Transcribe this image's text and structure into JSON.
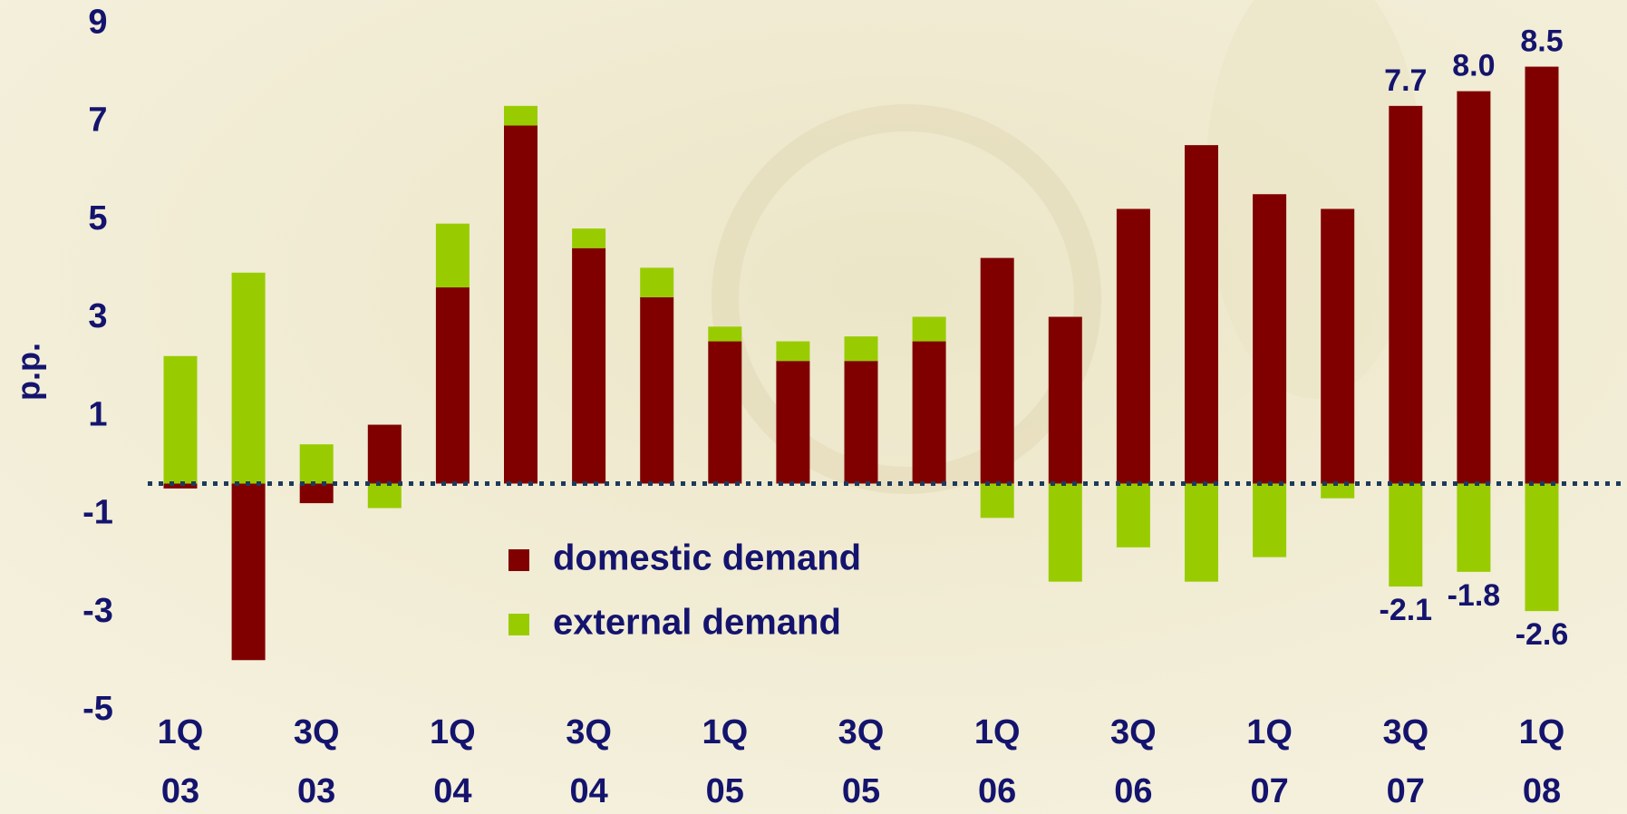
{
  "chart_data": {
    "type": "bar",
    "stacked": true,
    "y_label": "p.p.",
    "categories": [
      [
        "1Q",
        "03"
      ],
      null,
      [
        "3Q",
        "03"
      ],
      null,
      [
        "1Q",
        "04"
      ],
      null,
      [
        "3Q",
        "04"
      ],
      null,
      [
        "1Q",
        "05"
      ],
      null,
      [
        "3Q",
        "05"
      ],
      null,
      [
        "1Q",
        "06"
      ],
      null,
      [
        "3Q",
        "06"
      ],
      null,
      [
        "1Q",
        "07"
      ],
      null,
      [
        "3Q",
        "07"
      ],
      null,
      [
        "1Q",
        "08"
      ]
    ],
    "series": [
      {
        "name": "domestic demand",
        "color": "#800000",
        "values": [
          -0.1,
          -3.6,
          -0.4,
          1.2,
          4.0,
          7.3,
          4.8,
          3.8,
          2.9,
          2.5,
          2.5,
          2.9,
          4.6,
          3.4,
          5.6,
          6.9,
          5.9,
          5.6,
          7.7,
          8.0,
          8.5
        ],
        "value_labels": [
          null,
          null,
          null,
          null,
          null,
          null,
          null,
          null,
          null,
          null,
          null,
          null,
          null,
          null,
          null,
          null,
          null,
          null,
          "7.7",
          "8.0",
          "8.5"
        ]
      },
      {
        "name": "external demand",
        "color": "#99cc00",
        "values": [
          2.6,
          4.3,
          0.8,
          -0.5,
          1.3,
          0.4,
          0.4,
          0.6,
          0.3,
          0.4,
          0.5,
          0.5,
          -0.7,
          -2.0,
          -1.3,
          -2.0,
          -1.5,
          -0.3,
          -2.1,
          -1.8,
          -2.6
        ],
        "value_labels": [
          null,
          null,
          null,
          null,
          null,
          null,
          null,
          null,
          null,
          null,
          null,
          null,
          null,
          null,
          null,
          null,
          null,
          null,
          "-2.1",
          "-1.8",
          "-2.6"
        ]
      }
    ],
    "ylim": [
      -5,
      9
    ],
    "yticks": [
      -5,
      -3,
      -1,
      1,
      3,
      5,
      7,
      9
    ],
    "grid": false
  }
}
